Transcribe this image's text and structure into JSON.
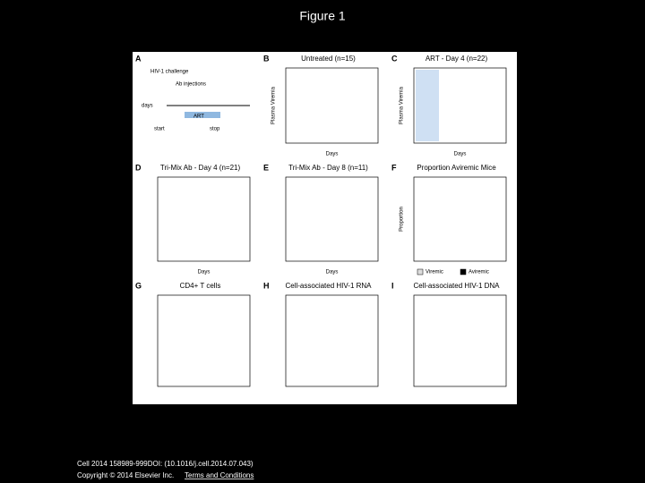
{
  "header": {
    "title": "Figure 1"
  },
  "figure": {
    "panels": [
      {
        "label": "A",
        "texts": [
          "HIV-1 challenge",
          "Ab injections",
          "ART",
          "start",
          "stop",
          "days"
        ]
      },
      {
        "label": "B",
        "title": "Untreated (n=15)",
        "xlabel": "Days",
        "ylabel": "Plasma Viremia"
      },
      {
        "label": "C",
        "title": "ART - Day 4 (n=22)",
        "xlabel": "Days",
        "ylabel": "Plasma Viremia"
      },
      {
        "label": "D",
        "title": "Tri-Mix Ab - Day 4 (n=21)",
        "xlabel": "Days"
      },
      {
        "label": "E",
        "title": "Tri-Mix Ab - Day 8 (n=11)",
        "xlabel": "Days"
      },
      {
        "label": "F",
        "title": "Proportion Aviremic Mice",
        "ylabel": "Proportion",
        "legend": [
          "Viremic",
          "Aviremic"
        ]
      },
      {
        "label": "G",
        "title": "CD4+ T cells"
      },
      {
        "label": "H",
        "title": "Cell-associated HIV-1 RNA"
      },
      {
        "label": "I",
        "title": "Cell-associated HIV-1 DNA"
      }
    ]
  },
  "footer": {
    "citation": "Cell 2014 158989-999DOI: (10.1016/j.cell.2014.07.043)",
    "copyright": "Copyright © 2014 Elsevier Inc.",
    "link": "Terms and Conditions"
  }
}
